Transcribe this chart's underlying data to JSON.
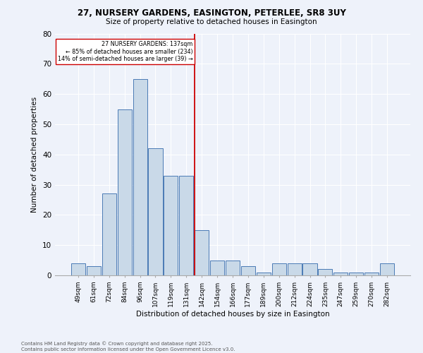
{
  "title_line1": "27, NURSERY GARDENS, EASINGTON, PETERLEE, SR8 3UY",
  "title_line2": "Size of property relative to detached houses in Easington",
  "xlabel": "Distribution of detached houses by size in Easington",
  "ylabel": "Number of detached properties",
  "footer_line1": "Contains HM Land Registry data © Crown copyright and database right 2025.",
  "footer_line2": "Contains public sector information licensed under the Open Government Licence v3.0.",
  "bar_labels": [
    "49sqm",
    "61sqm",
    "72sqm",
    "84sqm",
    "96sqm",
    "107sqm",
    "119sqm",
    "131sqm",
    "142sqm",
    "154sqm",
    "166sqm",
    "177sqm",
    "189sqm",
    "200sqm",
    "212sqm",
    "224sqm",
    "235sqm",
    "247sqm",
    "259sqm",
    "270sqm",
    "282sqm"
  ],
  "bar_values": [
    4,
    3,
    27,
    55,
    65,
    42,
    33,
    33,
    15,
    5,
    5,
    3,
    1,
    4,
    4,
    4,
    2,
    1,
    1,
    1,
    4
  ],
  "bar_color": "#c9d9e8",
  "bar_edge_color": "#4a7ab5",
  "property_line_label": "27 NURSERY GARDENS: 137sqm",
  "annotation_smaller": "← 85% of detached houses are smaller (234)",
  "annotation_larger": "14% of semi-detached houses are larger (39) →",
  "vline_color": "#cc0000",
  "annotation_box_color": "#cc0000",
  "ylim": [
    0,
    80
  ],
  "yticks": [
    0,
    10,
    20,
    30,
    40,
    50,
    60,
    70,
    80
  ],
  "background_color": "#eef2fa",
  "grid_color": "#ffffff"
}
